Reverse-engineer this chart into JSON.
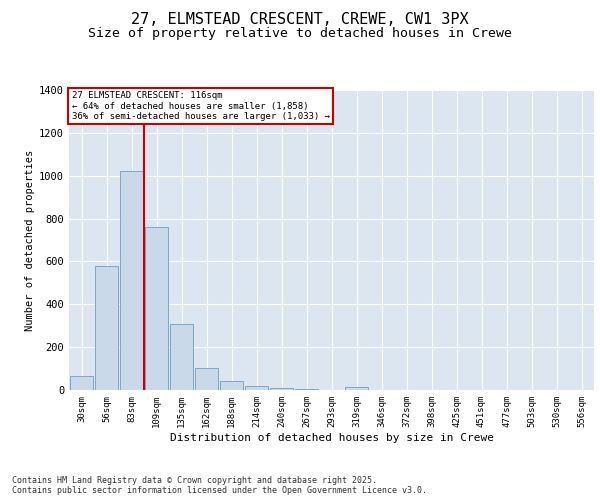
{
  "title_line1": "27, ELMSTEAD CRESCENT, CREWE, CW1 3PX",
  "title_line2": "Size of property relative to detached houses in Crewe",
  "xlabel": "Distribution of detached houses by size in Crewe",
  "ylabel": "Number of detached properties",
  "categories": [
    "30sqm",
    "56sqm",
    "83sqm",
    "109sqm",
    "135sqm",
    "162sqm",
    "188sqm",
    "214sqm",
    "240sqm",
    "267sqm",
    "293sqm",
    "319sqm",
    "346sqm",
    "372sqm",
    "398sqm",
    "425sqm",
    "451sqm",
    "477sqm",
    "503sqm",
    "530sqm",
    "556sqm"
  ],
  "values": [
    65,
    580,
    1020,
    760,
    310,
    105,
    40,
    20,
    10,
    5,
    0,
    12,
    0,
    0,
    0,
    0,
    0,
    0,
    0,
    0,
    0
  ],
  "bar_color": "#c9d9ea",
  "bar_edge_color": "#6a9fc0",
  "background_color": "#dce6f0",
  "grid_color": "#ffffff",
  "ylim": [
    0,
    1400
  ],
  "yticks": [
    0,
    200,
    400,
    600,
    800,
    1000,
    1200,
    1400
  ],
  "annotation_text": "27 ELMSTEAD CRESCENT: 116sqm\n← 64% of detached houses are smaller (1,858)\n36% of semi-detached houses are larger (1,033) →",
  "vline_x_idx": 2,
  "annotation_box_color": "#ffffff",
  "annotation_border_color": "#cc0000",
  "footnote": "Contains HM Land Registry data © Crown copyright and database right 2025.\nContains public sector information licensed under the Open Government Licence v3.0.",
  "title_fontsize": 11,
  "subtitle_fontsize": 9.5
}
